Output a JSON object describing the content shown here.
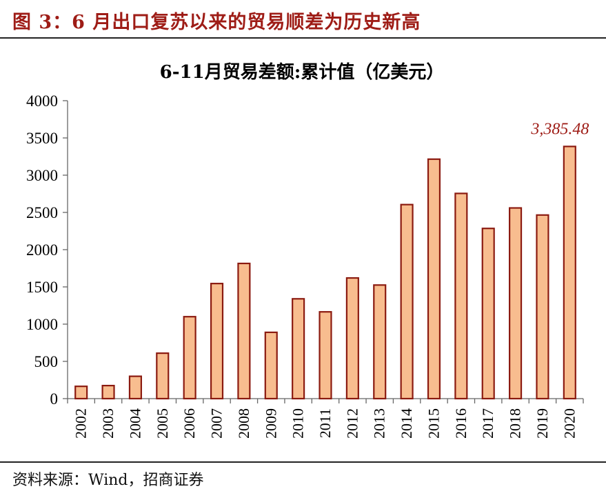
{
  "figure": {
    "title": "图 3：6 月出口复苏以来的贸易顺差为历史新高",
    "source": "资料来源：Wind，招商证券"
  },
  "colors": {
    "title_red": "#9e1c16",
    "bar_fill": "#f8bd8f",
    "bar_stroke": "#8b1a10",
    "annotation": "#9e1c16"
  },
  "chart_data": {
    "type": "bar",
    "title": "6-11月贸易差额:累计值（亿美元）",
    "categories": [
      "2002",
      "2003",
      "2004",
      "2005",
      "2006",
      "2007",
      "2008",
      "2009",
      "2010",
      "2011",
      "2012",
      "2013",
      "2014",
      "2015",
      "2016",
      "2017",
      "2018",
      "2019",
      "2020"
    ],
    "values": [
      165,
      175,
      300,
      610,
      1100,
      1545,
      1815,
      890,
      1340,
      1165,
      1620,
      1525,
      2605,
      3215,
      2755,
      2285,
      2560,
      2465,
      3385.48
    ],
    "yticks": [
      "0",
      "500",
      "1000",
      "1500",
      "2000",
      "2500",
      "3000",
      "3500",
      "4000"
    ],
    "ylim": [
      0,
      4000
    ],
    "annotation": {
      "category": "2020",
      "text": "3,385.48"
    },
    "grid": false,
    "legend": "none"
  }
}
